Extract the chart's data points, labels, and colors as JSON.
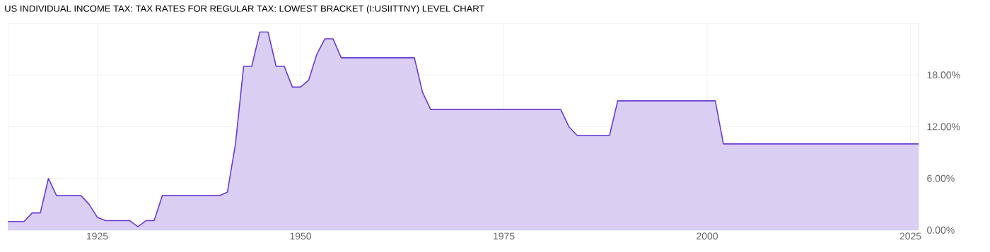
{
  "chart_data": {
    "type": "area",
    "title": "US INDIVIDUAL INCOME TAX: TAX RATES FOR REGULAR TAX: LOWEST BRACKET (I:USIITTNY) LEVEL CHART",
    "x": [
      1914,
      1915,
      1916,
      1917,
      1918,
      1919,
      1920,
      1921,
      1922,
      1923,
      1924,
      1925,
      1926,
      1927,
      1928,
      1929,
      1930,
      1931,
      1932,
      1933,
      1934,
      1935,
      1936,
      1937,
      1938,
      1939,
      1940,
      1941,
      1942,
      1943,
      1944,
      1945,
      1946,
      1947,
      1948,
      1949,
      1950,
      1951,
      1952,
      1953,
      1954,
      1955,
      1956,
      1957,
      1958,
      1959,
      1960,
      1961,
      1962,
      1963,
      1964,
      1965,
      1966,
      1967,
      1968,
      1969,
      1970,
      1971,
      1972,
      1973,
      1974,
      1975,
      1976,
      1977,
      1978,
      1979,
      1980,
      1981,
      1982,
      1983,
      1984,
      1985,
      1986,
      1987,
      1988,
      1989,
      1990,
      1991,
      1992,
      1993,
      1994,
      1995,
      1996,
      1997,
      1998,
      1999,
      2000,
      2001,
      2002,
      2003,
      2004,
      2005,
      2006,
      2007,
      2008,
      2009,
      2010,
      2011,
      2012,
      2013,
      2014,
      2015,
      2016,
      2017,
      2018,
      2019,
      2020,
      2021,
      2022,
      2023,
      2024,
      2025,
      2026
    ],
    "series": [
      {
        "color": "#6a3dd0",
        "values": [
          1,
          1,
          1,
          2,
          2,
          6,
          4,
          4,
          4,
          4,
          3,
          1.5,
          1.1,
          1.1,
          1.1,
          1.1,
          0.4,
          1.1,
          1.1,
          4,
          4,
          4,
          4,
          4,
          4,
          4,
          4,
          4.4,
          10,
          19,
          19,
          23,
          23,
          19,
          19,
          16.6,
          16.6,
          17.4,
          20.4,
          22.2,
          22.2,
          20,
          20,
          20,
          20,
          20,
          20,
          20,
          20,
          20,
          20,
          16,
          14,
          14,
          14,
          14,
          14,
          14,
          14,
          14,
          14,
          14,
          14,
          14,
          14,
          14,
          14,
          14,
          14,
          12,
          11,
          11,
          11,
          11,
          11,
          15,
          15,
          15,
          15,
          15,
          15,
          15,
          15,
          15,
          15,
          15,
          15,
          15,
          10,
          10,
          10,
          10,
          10,
          10,
          10,
          10,
          10,
          10,
          10,
          10,
          10,
          10,
          10,
          10,
          10,
          10,
          10,
          10,
          10,
          10,
          10,
          10,
          10
        ]
      }
    ],
    "xlim": [
      1914,
      2026
    ],
    "ylim": [
      0,
      24
    ],
    "xticks": [
      1925,
      1950,
      1975,
      2000,
      2025
    ],
    "yticks": [
      {
        "value": 0,
        "label": "0.00%"
      },
      {
        "value": 6,
        "label": "6.00%"
      },
      {
        "value": 12,
        "label": "12.00%"
      },
      {
        "value": 18,
        "label": "18.00%"
      }
    ],
    "grid": true
  }
}
